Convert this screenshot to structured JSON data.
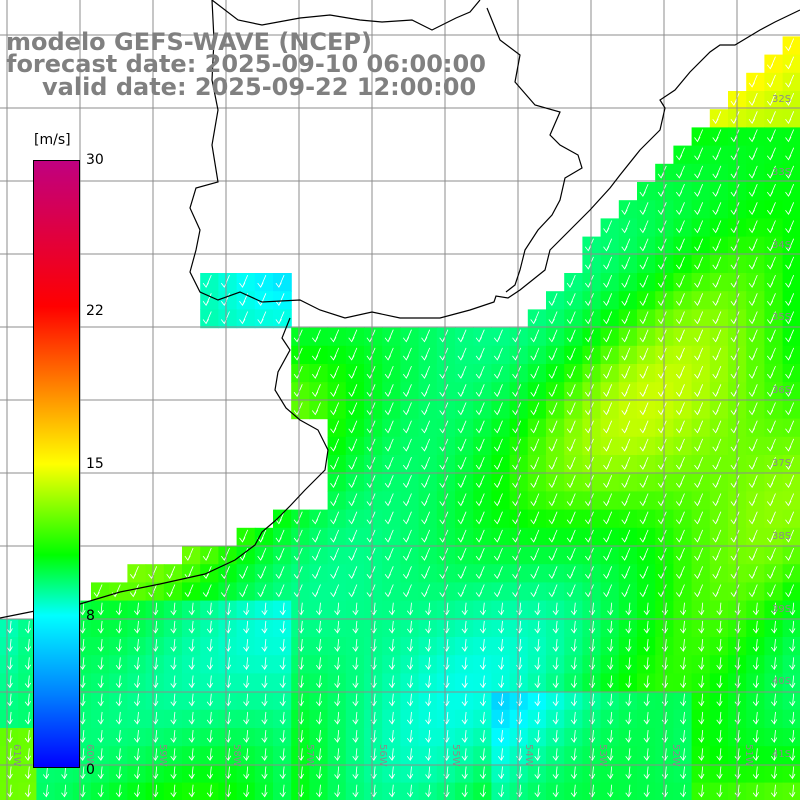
{
  "header": {
    "line1": "modelo GEFS-WAVE (NCEP)",
    "line2": "forecast date: 2025-09-10 06:00:00",
    "line3": "valid date: 2025-09-22 12:00:00"
  },
  "colorbar": {
    "units": "[m/s]",
    "ticks": [
      "30",
      "22",
      "15",
      "8",
      "0"
    ],
    "min": 0,
    "max": 30,
    "colors": [
      "#0000ff",
      "#0080ff",
      "#00ffff",
      "#00ff00",
      "#ffff00",
      "#ff8000",
      "#ff0000",
      "#c00080"
    ]
  },
  "axes": {
    "lat_labels": [
      "32S",
      "33S",
      "34S",
      "35S",
      "36S",
      "37S",
      "38S",
      "39S",
      "40S",
      "41S"
    ],
    "lon_labels": [
      "61W",
      "60W",
      "59W",
      "58W",
      "57W",
      "56W",
      "55W",
      "54W",
      "53W",
      "52W",
      "51W"
    ]
  },
  "colors": {
    "land": "#ffffff",
    "grid": "#808080",
    "coast": "#000000",
    "arrows": "#ffffff",
    "title": "#808080"
  }
}
